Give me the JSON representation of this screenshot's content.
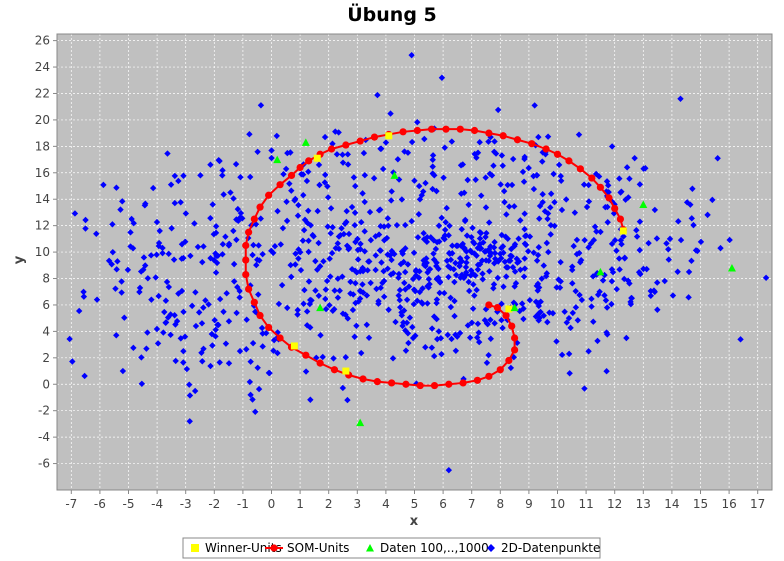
{
  "chart_data": {
    "type": "scatter",
    "title": "Übung 5",
    "xlabel": "x",
    "ylabel": "y",
    "xlim": [
      -7.5,
      17.5
    ],
    "ylim": [
      -8,
      26.5
    ],
    "xticks": [
      "-7",
      "-6",
      "-5",
      "-4",
      "-3",
      "-2",
      "-1",
      "0",
      "1",
      "2",
      "3",
      "4",
      "5",
      "6",
      "7",
      "8",
      "9",
      "10",
      "11",
      "12",
      "13",
      "14",
      "15",
      "16",
      "17"
    ],
    "yticks": [
      "-6",
      "-4",
      "-2",
      "0",
      "2",
      "4",
      "6",
      "8",
      "10",
      "12",
      "14",
      "16",
      "18",
      "20",
      "22",
      "24",
      "26"
    ],
    "grid": true,
    "legend_position": "bottom",
    "plot_background": "#c0c0c0",
    "series": [
      {
        "name": "Winner-Units",
        "marker": "square",
        "color": "#ffff00",
        "x": [
          1.6,
          4.1,
          12.3,
          8.3,
          2.6,
          0.8
        ],
        "y": [
          17.1,
          18.8,
          11.6,
          5.7,
          1.0,
          2.9
        ]
      },
      {
        "name": "SOM-Units",
        "marker": "circle-line",
        "color": "#ff0000",
        "x": [
          0.7,
          1.0,
          1.3,
          1.7,
          2.1,
          2.6,
          3.1,
          3.6,
          4.1,
          4.6,
          5.1,
          5.6,
          6.1,
          6.6,
          7.1,
          7.6,
          8.1,
          8.6,
          9.1,
          9.6,
          10.0,
          10.4,
          10.8,
          11.2,
          11.5,
          11.8,
          12.0,
          12.2,
          12.3
        ],
        "y": [
          15.8,
          16.4,
          16.9,
          17.4,
          17.8,
          18.1,
          18.4,
          18.7,
          18.9,
          19.1,
          19.2,
          19.3,
          19.3,
          19.3,
          19.2,
          19.0,
          18.8,
          18.5,
          18.2,
          17.8,
          17.4,
          16.9,
          16.3,
          15.6,
          14.9,
          14.1,
          13.3,
          12.5,
          11.7
        ],
        "x2": [
          0.7,
          0.3,
          -0.1,
          -0.4,
          -0.6,
          -0.8,
          -0.9,
          -0.9,
          -0.9,
          -0.8,
          -0.6,
          -0.4,
          -0.1,
          0.3,
          0.7,
          1.2,
          1.7,
          2.2,
          2.7,
          3.2,
          3.7,
          4.2,
          4.7,
          5.2,
          5.7,
          6.2,
          6.7,
          7.2,
          7.6,
          8.0,
          8.3,
          8.5,
          8.5,
          8.4,
          8.2,
          7.9,
          7.6
        ],
        "y2": [
          15.8,
          15.1,
          14.3,
          13.4,
          12.5,
          11.5,
          10.5,
          9.4,
          8.3,
          7.2,
          6.2,
          5.2,
          4.3,
          3.5,
          2.8,
          2.2,
          1.6,
          1.1,
          0.7,
          0.4,
          0.2,
          0.1,
          0.0,
          -0.1,
          -0.1,
          0.0,
          0.1,
          0.3,
          0.6,
          1.1,
          1.8,
          2.6,
          3.5,
          4.4,
          5.2,
          5.8,
          6.0
        ]
      },
      {
        "name": "Daten 100,..,1000",
        "marker": "triangle",
        "color": "#00ff00",
        "x": [
          0.2,
          1.2,
          4.3,
          1.7,
          11.5,
          13.0,
          16.1,
          8.5,
          3.1
        ],
        "y": [
          17.0,
          18.3,
          15.8,
          5.8,
          8.5,
          13.6,
          8.8,
          5.8,
          -2.9
        ]
      },
      {
        "name": "2D-Datenpunkte",
        "marker": "diamond",
        "color": "#0000ff",
        "generated": true,
        "count": 1000
      }
    ]
  }
}
